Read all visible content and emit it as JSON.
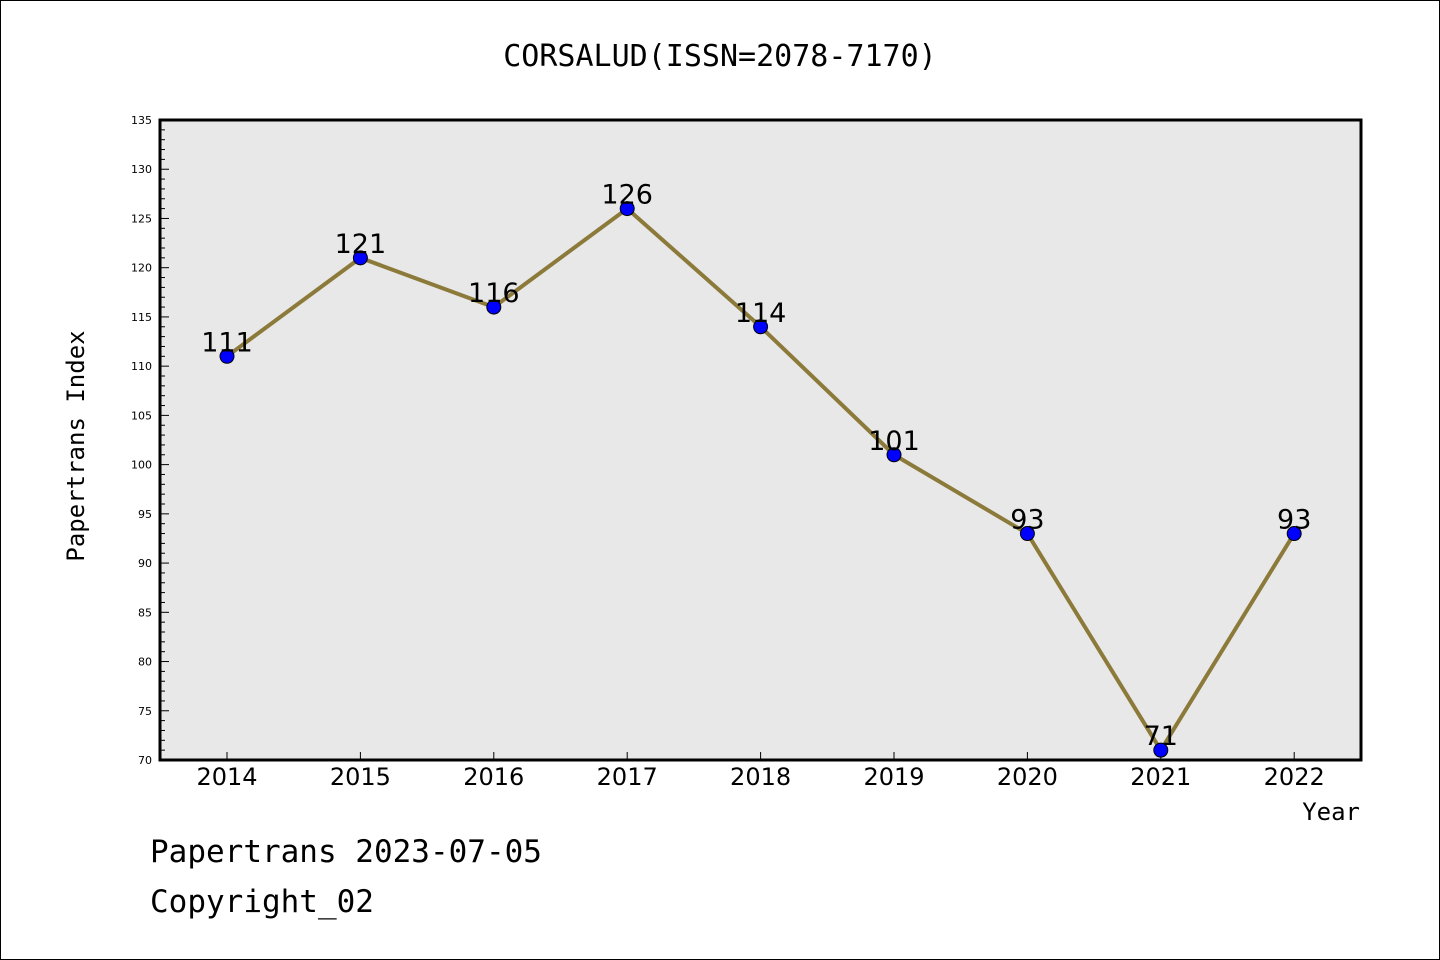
{
  "chart_data": {
    "type": "line",
    "title": "CORSALUD(ISSN=2078-7170)",
    "xlabel": "Year",
    "ylabel": "Papertrans Index",
    "categories": [
      "2014",
      "2015",
      "2016",
      "2017",
      "2018",
      "2019",
      "2020",
      "2021",
      "2022"
    ],
    "values": [
      111,
      121,
      116,
      126,
      114,
      101,
      93,
      71,
      93
    ],
    "data_labels": [
      "111",
      "121",
      "116",
      "126",
      "114",
      "101",
      "93",
      "71",
      "93"
    ],
    "ylim": [
      70,
      135
    ],
    "yticks": [
      "70",
      "75",
      "80",
      "85",
      "90",
      "95",
      "100",
      "105",
      "110",
      "115",
      "120",
      "125",
      "130",
      "135"
    ],
    "grid": false,
    "legend": "none",
    "colors": {
      "line": "#8c7a3a",
      "marker": "#0000ff",
      "plot_background": "#e8e8e8"
    }
  },
  "footer": {
    "line1": "Papertrans 2023-07-05",
    "line2": "Copyright_02"
  }
}
